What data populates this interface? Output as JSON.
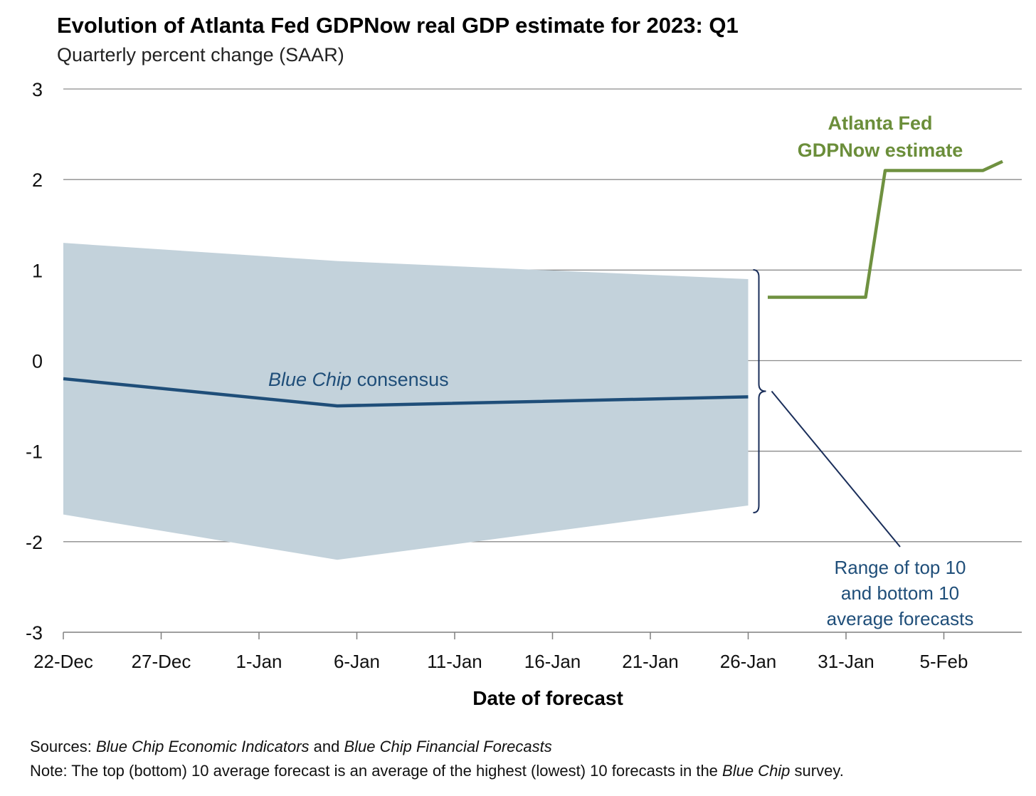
{
  "chart_data": {
    "type": "line",
    "title": "Evolution of Atlanta Fed GDPNow real GDP estimate for 2023: Q1",
    "subtitle": "Quarterly percent change (SAAR)",
    "xlabel": "Date of forecast",
    "ylabel": "",
    "ylim": [
      -3,
      3
    ],
    "yticks": [
      3,
      2,
      1,
      0,
      -1,
      -2,
      -3
    ],
    "yticklabels": [
      "3",
      "2",
      "1",
      "0",
      "-1",
      "-2",
      "-3"
    ],
    "xlim": [
      "2022-12-22",
      "2023-02-09"
    ],
    "xticks": [
      "2022-12-22",
      "2022-12-27",
      "2023-01-01",
      "2023-01-06",
      "2023-01-11",
      "2023-01-16",
      "2023-01-21",
      "2023-01-26",
      "2023-01-31",
      "2023-02-05"
    ],
    "xticklabels": [
      "22-Dec",
      "27-Dec",
      "1-Jan",
      "6-Jan",
      "11-Jan",
      "16-Jan",
      "21-Jan",
      "26-Jan",
      "31-Jan",
      "5-Feb"
    ],
    "grid": "horizontal",
    "series": [
      {
        "name": "Blue Chip consensus",
        "name_italic": "Blue Chip",
        "name_rest": " consensus",
        "color": "#1f4e79",
        "x": [
          "2022-12-22",
          "2023-01-05",
          "2023-01-26"
        ],
        "y": [
          -0.2,
          -0.5,
          -0.4
        ]
      },
      {
        "name": "Atlanta Fed GDPNow estimate",
        "name_lines": [
          "Atlanta Fed",
          "GDPNow estimate"
        ],
        "color": "#6f9140",
        "x": [
          "2023-01-27",
          "2023-02-01",
          "2023-02-02",
          "2023-02-07",
          "2023-02-08"
        ],
        "y": [
          0.7,
          0.7,
          2.1,
          2.1,
          2.2
        ]
      }
    ],
    "band": {
      "name": "Range of top 10 and bottom 10 average forecasts",
      "name_lines": [
        "Range of top 10",
        "and bottom 10",
        "average forecasts"
      ],
      "color": "#c3d2db",
      "x": [
        "2022-12-22",
        "2023-01-05",
        "2023-01-26"
      ],
      "upper": [
        1.3,
        1.1,
        0.9
      ],
      "lower": [
        -1.7,
        -2.2,
        -1.6
      ]
    }
  },
  "footnotes": {
    "sources_label": "Sources:",
    "sources_italic_1": "Blue Chip Economic Indicators",
    "sources_and": " and ",
    "sources_italic_2": "Blue Chip Financial Forecasts",
    "note_label": "Note:",
    "note_text_1": " The top (bottom) 10 average forecast is an average of the highest (lowest) 10 forecasts in the ",
    "note_italic": "Blue Chip",
    "note_text_2": " survey."
  }
}
